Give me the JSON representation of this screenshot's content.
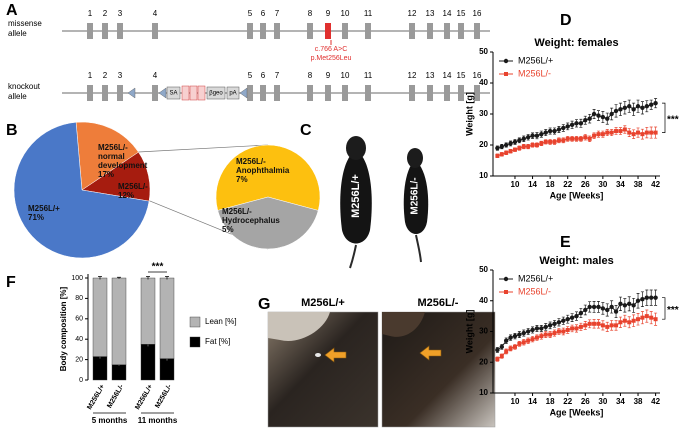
{
  "panels": [
    "A",
    "B",
    "C",
    "D",
    "E",
    "F",
    "G"
  ],
  "gene": {
    "exons": [
      "1",
      "2",
      "3",
      "4",
      "5",
      "6",
      "7",
      "8",
      "9",
      "10",
      "11",
      "12",
      "13",
      "14",
      "15",
      "16"
    ],
    "missense_label": "missense allele",
    "knockout_label": "knockout allele",
    "mutation": [
      "c.766 A>C",
      "p.Met256Leu"
    ],
    "cassette": [
      "SA",
      "βgeo",
      "pA"
    ]
  },
  "photo_c": {
    "labels": [
      "M256L/+",
      "M256L/-"
    ]
  },
  "photo_g": {
    "labels": [
      "M256L/+",
      "M256L/-"
    ]
  },
  "chart_data": [
    {
      "type": "pie",
      "labels": [
        "M256L/- normal development",
        "M256L/-",
        "M256L/+"
      ],
      "values": [
        17,
        12,
        71
      ],
      "value_labels": [
        "17%",
        "12%",
        "71%"
      ],
      "colors": [
        "#ee7d3a",
        "#a61c0f",
        "#4a78c8"
      ]
    },
    {
      "type": "pie",
      "labels": [
        "M256L/- Anophthalmia",
        "M256L/- Hydrocephalus"
      ],
      "values": [
        7,
        5
      ],
      "value_labels": [
        "7%",
        "5%"
      ],
      "colors": [
        "#fdc00f",
        "#a5a5a5"
      ]
    },
    {
      "type": "line",
      "title": "Weight: females",
      "xlabel": "Age [Weeks]",
      "ylabel": "Weight [g]",
      "x": [
        6,
        7,
        8,
        9,
        10,
        11,
        12,
        13,
        14,
        15,
        16,
        17,
        18,
        19,
        20,
        21,
        22,
        23,
        24,
        25,
        26,
        27,
        28,
        29,
        30,
        31,
        32,
        33,
        34,
        35,
        36,
        37,
        38,
        39,
        40,
        41,
        42
      ],
      "series": [
        {
          "name": "M256L/+",
          "color": "#1a1a1a",
          "marker": "circle",
          "values": [
            19,
            19.5,
            20,
            20.5,
            21,
            21.5,
            22,
            22.5,
            23,
            23,
            23.5,
            24,
            24.5,
            24.5,
            25,
            25.5,
            26,
            26.5,
            27,
            27,
            28,
            28.5,
            30,
            29.5,
            29,
            28.5,
            30,
            31,
            31.5,
            32,
            32.5,
            31.5,
            32.5,
            32,
            32.5,
            33,
            33.5
          ],
          "errors": [
            0.7,
            0.7,
            0.7,
            0.8,
            0.8,
            0.8,
            0.9,
            0.9,
            0.9,
            1,
            1,
            1,
            1,
            1,
            1,
            1.1,
            1.1,
            1.2,
            1.2,
            1.3,
            1.3,
            1.4,
            1.5,
            1.6,
            1.8,
            1.8,
            1.9,
            2,
            2,
            2,
            2,
            2,
            2,
            2,
            1.8,
            1.5,
            1.5
          ]
        },
        {
          "name": "M256L/-",
          "color": "#e8432e",
          "marker": "square",
          "values": [
            16.5,
            17,
            17.5,
            18,
            18.5,
            19,
            19.5,
            19.5,
            20,
            20,
            20.5,
            21,
            21,
            21,
            21.5,
            21.5,
            22,
            22,
            22,
            22,
            22.5,
            22,
            23,
            23.5,
            23.5,
            24,
            24,
            24.5,
            24.5,
            25,
            24,
            23.5,
            24,
            23.5,
            24,
            24,
            24
          ],
          "errors": [
            0.6,
            0.6,
            0.6,
            0.6,
            0.6,
            0.7,
            0.7,
            0.7,
            0.7,
            0.7,
            0.7,
            0.7,
            0.8,
            0.8,
            0.8,
            0.8,
            0.8,
            0.8,
            0.8,
            0.8,
            0.9,
            0.9,
            0.9,
            1,
            1,
            1,
            1,
            1.1,
            1.1,
            1.2,
            1.3,
            1.4,
            1.5,
            1.6,
            1.7,
            1.8,
            1.8
          ]
        }
      ],
      "xlim": [
        5,
        43
      ],
      "ylim": [
        10,
        50
      ],
      "xticks": [
        10,
        14,
        18,
        22,
        26,
        30,
        34,
        38,
        42
      ],
      "yticks": [
        10,
        20,
        30,
        40,
        50
      ],
      "legend": "upper left",
      "annotation": "***"
    },
    {
      "type": "line",
      "title": "Weight: males",
      "xlabel": "Age [Weeks]",
      "ylabel": "Weight [g]",
      "x": [
        6,
        7,
        8,
        9,
        10,
        11,
        12,
        13,
        14,
        15,
        16,
        17,
        18,
        19,
        20,
        21,
        22,
        23,
        24,
        25,
        26,
        27,
        28,
        29,
        30,
        31,
        32,
        33,
        34,
        35,
        36,
        37,
        38,
        39,
        40,
        41,
        42
      ],
      "series": [
        {
          "name": "M256L/+",
          "color": "#1a1a1a",
          "marker": "circle",
          "values": [
            24,
            25,
            27,
            28,
            28.5,
            29,
            29.5,
            30,
            30.5,
            31,
            31,
            31.5,
            32,
            32.5,
            33,
            33.5,
            34,
            34.5,
            35,
            36,
            37,
            38,
            38,
            38,
            37.5,
            37,
            38,
            36.5,
            39,
            38.5,
            39,
            38.5,
            40,
            40.5,
            41,
            41,
            41
          ],
          "errors": [
            0.8,
            0.8,
            0.9,
            0.9,
            0.9,
            1,
            1,
            1,
            1,
            1,
            1,
            1.1,
            1.1,
            1.1,
            1.2,
            1.2,
            1.3,
            1.3,
            1.4,
            1.5,
            1.6,
            1.7,
            1.8,
            1.8,
            1.9,
            2,
            2,
            2,
            2.2,
            2.2,
            2.3,
            2.3,
            2.4,
            2.4,
            2.5,
            2.5,
            2.5
          ]
        },
        {
          "name": "M256L/-",
          "color": "#e8432e",
          "marker": "square",
          "values": [
            21,
            22,
            23.5,
            24.5,
            25,
            26,
            26.5,
            27,
            27.5,
            28,
            28.5,
            29,
            29,
            29.5,
            30,
            30,
            30.5,
            31,
            31,
            31.5,
            32,
            32.5,
            32.5,
            32.5,
            32,
            31.5,
            32,
            32,
            33,
            33.5,
            33,
            33.5,
            34,
            34.5,
            35,
            34.5,
            34
          ],
          "errors": [
            0.7,
            0.7,
            0.8,
            0.8,
            0.8,
            0.8,
            0.9,
            0.9,
            0.9,
            0.9,
            1,
            1,
            1,
            1,
            1,
            1.1,
            1.1,
            1.1,
            1.2,
            1.2,
            1.3,
            1.3,
            1.4,
            1.4,
            1.5,
            1.5,
            1.6,
            1.6,
            1.7,
            1.8,
            1.8,
            1.9,
            1.9,
            2,
            2,
            2,
            2
          ]
        }
      ],
      "xlim": [
        5,
        43
      ],
      "ylim": [
        10,
        50
      ],
      "xticks": [
        10,
        14,
        18,
        22,
        26,
        30,
        34,
        38,
        42
      ],
      "yticks": [
        10,
        20,
        30,
        40,
        50
      ],
      "legend": "upper left",
      "annotation": "***"
    },
    {
      "type": "stacked_bar",
      "ylabel": "Body composition [%]",
      "categories": [
        "M256L/+",
        "M256L/-",
        "M256L/+",
        "M256L/-"
      ],
      "group_labels": [
        "5 months",
        "11 months"
      ],
      "series": [
        {
          "name": "Fat [%]",
          "color": "#000000",
          "values": [
            23,
            15,
            35,
            21
          ],
          "errors": [
            2,
            1,
            2,
            2
          ]
        },
        {
          "name": "Lean [%]",
          "color": "#b3b3b3",
          "values": [
            77,
            85,
            65,
            79
          ],
          "errors": [
            1.5,
            0.7,
            1.5,
            1.5
          ]
        }
      ],
      "ylim": [
        0,
        100
      ],
      "yticks": [
        0,
        20,
        40,
        60,
        80,
        100
      ],
      "annotation": "***"
    }
  ]
}
